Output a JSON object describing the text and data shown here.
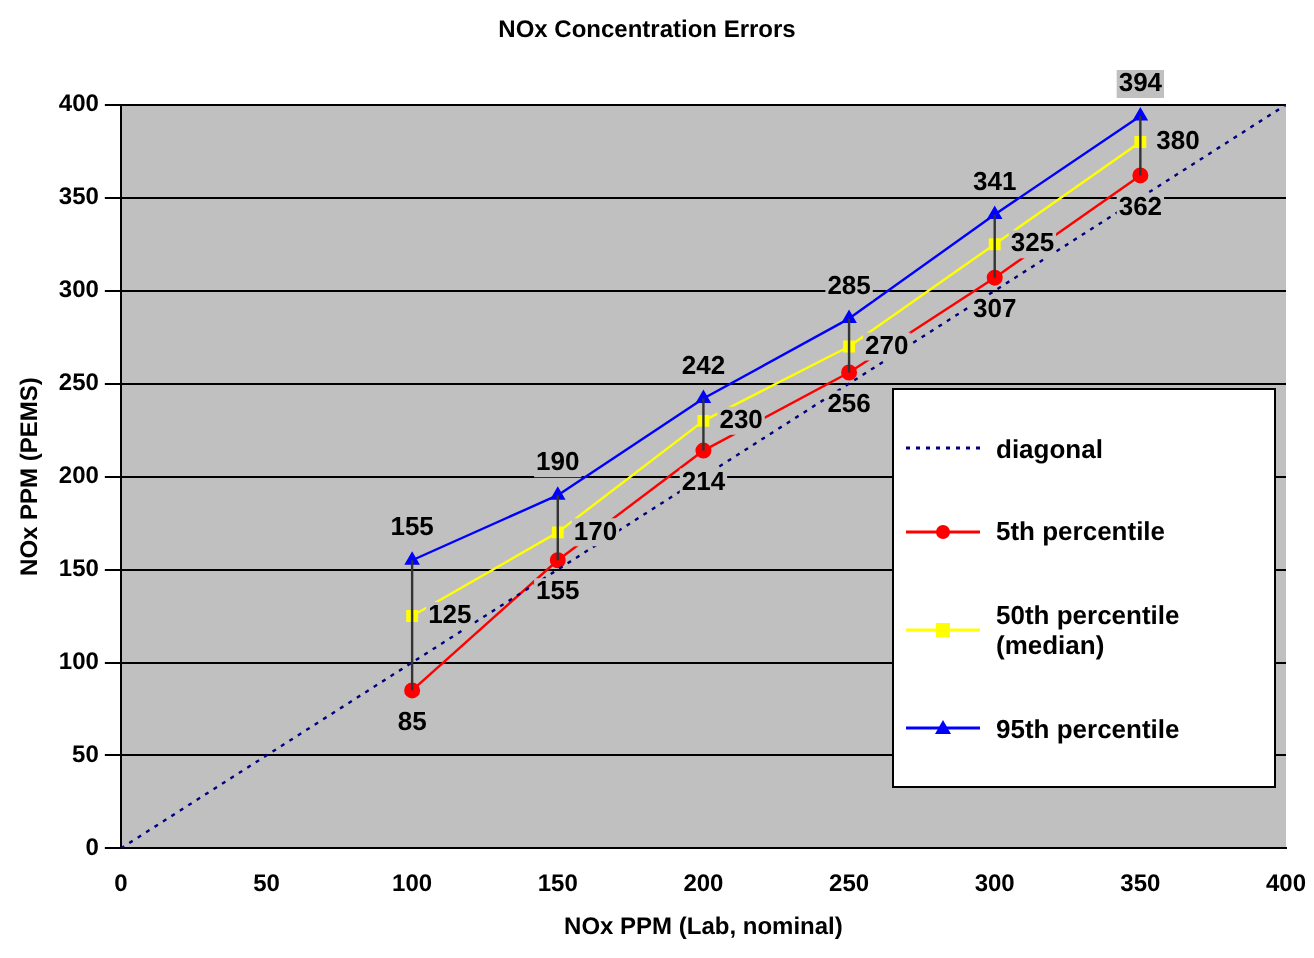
{
  "chart_data": {
    "type": "line",
    "title": "NOx Concentration Errors",
    "xlabel": "NOx PPM (Lab, nominal)",
    "ylabel": "NOx PPM (PEMS)",
    "x": [
      100,
      150,
      200,
      250,
      300,
      350
    ],
    "series": [
      {
        "name": "diagonal",
        "color": "#000080",
        "x": [
          0,
          400
        ],
        "values": [
          0,
          400
        ],
        "marker": "none",
        "line_style": "dotted"
      },
      {
        "name": "5th percentile",
        "color": "#ff0000",
        "values": [
          85,
          155,
          214,
          256,
          307,
          362
        ],
        "marker": "circle",
        "value_labels": [
          "85",
          "155",
          "214",
          "256",
          "307",
          "362"
        ]
      },
      {
        "name": "50th percentile (median)",
        "color": "#ffff00",
        "values": [
          125,
          170,
          230,
          270,
          325,
          380
        ],
        "marker": "square",
        "value_labels": [
          "125",
          "170",
          "230",
          "270",
          "325",
          "380"
        ],
        "errors": [
          [
            85,
            155
          ],
          [
            155,
            190
          ],
          [
            214,
            242
          ],
          [
            256,
            285
          ],
          [
            307,
            341
          ],
          [
            362,
            394
          ]
        ]
      },
      {
        "name": "95th percentile",
        "color": "#0000ff",
        "values": [
          155,
          190,
          242,
          285,
          341,
          394
        ],
        "marker": "triangle",
        "value_labels": [
          "155",
          "190",
          "242",
          "285",
          "341",
          "394"
        ]
      }
    ],
    "xlim": [
      0,
      400
    ],
    "xticks": [
      0,
      50,
      100,
      150,
      200,
      250,
      300,
      350,
      400
    ],
    "ylim": [
      0,
      400
    ],
    "yticks": [
      0,
      50,
      100,
      150,
      200,
      250,
      300,
      350,
      400
    ],
    "grid": "y",
    "legend": "bottom right"
  }
}
